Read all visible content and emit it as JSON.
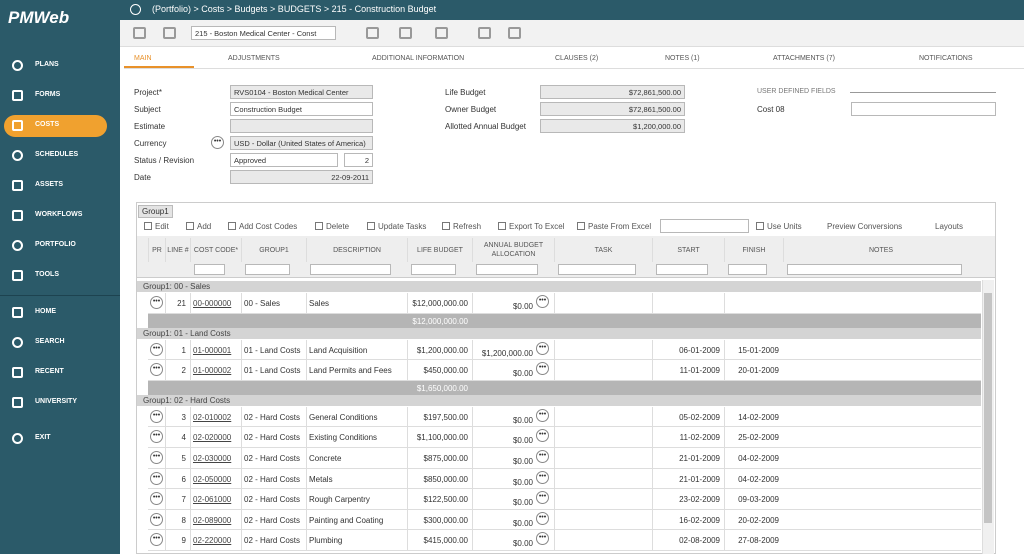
{
  "sidebar": {
    "logo": "PMWeb",
    "nav": [
      {
        "label": "PLANS"
      },
      {
        "label": "FORMS"
      },
      {
        "label": "COSTS",
        "active": true
      },
      {
        "label": "SCHEDULES"
      },
      {
        "label": "ASSETS"
      },
      {
        "label": "WORKFLOWS"
      },
      {
        "label": "PORTFOLIO"
      },
      {
        "label": "TOOLS"
      },
      {
        "label": "HOME"
      },
      {
        "label": "SEARCH"
      },
      {
        "label": "RECENT"
      },
      {
        "label": "UNIVERSITY"
      },
      {
        "label": "EXIT"
      }
    ]
  },
  "header": {
    "breadcrumb": "(Portfolio) > Costs > Budgets > BUDGETS > 215 - Construction Budget"
  },
  "toolbar": {
    "record_select": "215 - Boston Medical Center - Const"
  },
  "tabs": [
    {
      "label": "MAIN",
      "active": true
    },
    {
      "label": "ADJUSTMENTS"
    },
    {
      "label": "ADDITIONAL INFORMATION"
    },
    {
      "label": "CLAUSES (2)"
    },
    {
      "label": "NOTES (1)"
    },
    {
      "label": "ATTACHMENTS (7)"
    },
    {
      "label": "NOTIFICATIONS"
    }
  ],
  "form": {
    "project": {
      "label": "Project*",
      "value": "RVS0104 - Boston Medical Center"
    },
    "subject": {
      "label": "Subject",
      "value": "Construction Budget"
    },
    "estimate": {
      "label": "Estimate"
    },
    "currency": {
      "label": "Currency",
      "value": "USD - Dollar (United States of America)"
    },
    "status": {
      "label": "Status / Revision",
      "value": "Approved",
      "revision": "2"
    },
    "date": {
      "label": "Date",
      "value": "22-09-2011"
    },
    "life_budget": {
      "label": "Life Budget",
      "value": "$72,861,500.00"
    },
    "owner_budget": {
      "label": "Owner Budget",
      "value": "$72,861,500.00"
    },
    "allotted": {
      "label": "Allotted Annual Budget",
      "value": "$1,200,000.00"
    },
    "user_defined": "USER DEFINED FIELDS",
    "cost08": {
      "label": "Cost 08"
    }
  },
  "grid": {
    "group_chip": "Group1",
    "buttons": [
      "Edit",
      "Add",
      "Add Cost Codes",
      "Delete",
      "Update Tasks",
      "Refresh",
      "Export To Excel",
      "Paste From Excel"
    ],
    "use_units": "Use Units",
    "preview": "Preview Conversions",
    "layouts": "Layouts",
    "columns": [
      "PR",
      "LINE #",
      "COST CODE*",
      "GROUP1",
      "DESCRIPTION",
      "LIFE BUDGET",
      "ANNUAL BUDGET ALLOCATION",
      "TASK",
      "START",
      "FINISH",
      "NOTES"
    ],
    "groups": [
      {
        "title": "Group1: 00 - Sales",
        "subtotal": "$12,000,000.00",
        "rows": [
          {
            "line": "21",
            "code": "00-000000",
            "group": "00 - Sales",
            "description": "Sales",
            "life": "$12,000,000.00",
            "annual": "$0.00"
          }
        ]
      },
      {
        "title": "Group1: 01 - Land Costs",
        "subtotal": "$1,650,000.00",
        "rows": [
          {
            "line": "1",
            "code": "01-000001",
            "group": "01 - Land Costs",
            "description": "Land Acquisition",
            "life": "$1,200,000.00",
            "annual": "$1,200,000.00",
            "start": "06-01-2009",
            "finish": "15-01-2009"
          },
          {
            "line": "2",
            "code": "01-000002",
            "group": "01 - Land Costs",
            "description": "Land Permits and Fees",
            "life": "$450,000.00",
            "annual": "$0.00",
            "start": "11-01-2009",
            "finish": "20-01-2009"
          }
        ]
      },
      {
        "title": "Group1: 02 - Hard Costs",
        "rows": [
          {
            "line": "3",
            "code": "02-010002",
            "group": "02 - Hard Costs",
            "description": "General Conditions",
            "life": "$197,500.00",
            "annual": "$0.00",
            "start": "05-02-2009",
            "finish": "14-02-2009"
          },
          {
            "line": "4",
            "code": "02-020000",
            "group": "02 - Hard Costs",
            "description": "Existing Conditions",
            "life": "$1,100,000.00",
            "annual": "$0.00",
            "start": "11-02-2009",
            "finish": "25-02-2009"
          },
          {
            "line": "5",
            "code": "02-030000",
            "group": "02 - Hard Costs",
            "description": "Concrete",
            "life": "$875,000.00",
            "annual": "$0.00",
            "start": "21-01-2009",
            "finish": "04-02-2009"
          },
          {
            "line": "6",
            "code": "02-050000",
            "group": "02 - Hard Costs",
            "description": "Metals",
            "life": "$850,000.00",
            "annual": "$0.00",
            "start": "21-01-2009",
            "finish": "04-02-2009"
          },
          {
            "line": "7",
            "code": "02-061000",
            "group": "02 - Hard Costs",
            "description": "Rough Carpentry",
            "life": "$122,500.00",
            "annual": "$0.00",
            "start": "23-02-2009",
            "finish": "09-03-2009"
          },
          {
            "line": "8",
            "code": "02-089000",
            "group": "02 - Hard Costs",
            "description": "Painting and Coating",
            "life": "$300,000.00",
            "annual": "$0.00",
            "start": "16-02-2009",
            "finish": "20-02-2009"
          },
          {
            "line": "9",
            "code": "02-220000",
            "group": "02 - Hard Costs",
            "description": "Plumbing",
            "life": "$415,000.00",
            "annual": "$0.00",
            "start": "02-08-2009",
            "finish": "27-08-2009"
          }
        ]
      }
    ]
  }
}
